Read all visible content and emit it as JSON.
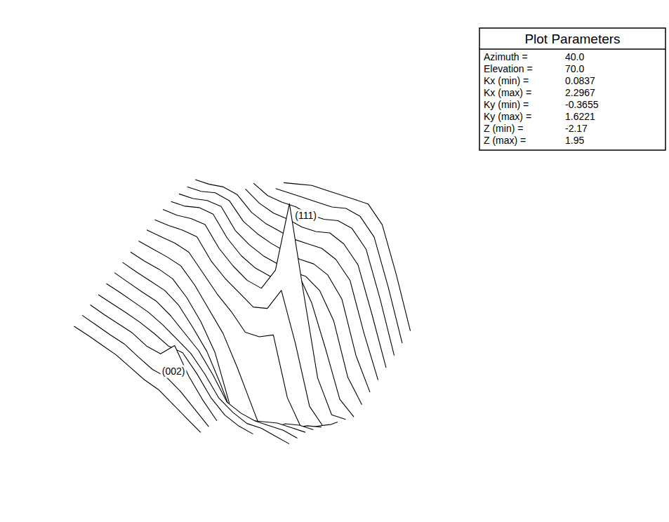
{
  "chart_data": {
    "type": "surface",
    "parameters_title": "Plot Parameters",
    "parameters": [
      {
        "name": "Azimuth =",
        "value": 40,
        "label": "40.0"
      },
      {
        "name": "Elevation =",
        "value": 70,
        "label": "70.0"
      },
      {
        "name": "Kx (min) =",
        "value": 0.0837
      },
      {
        "name": "Kx (max) =",
        "value": 2.2967
      },
      {
        "name": "Ky (min) =",
        "value": -0.3655
      },
      {
        "name": "Ky (max) =",
        "value": 1.6221
      },
      {
        "name": "Z (min) =",
        "value": -2.17
      },
      {
        "name": "Z (max) =",
        "value": 1.95
      }
    ],
    "xlim": [
      0.0837,
      2.2967
    ],
    "ylim": [
      -0.3655,
      1.6221
    ],
    "zlim": [
      -2.17,
      1.95
    ],
    "x": [
      0.084,
      0.254,
      0.424,
      0.594,
      0.765,
      0.935,
      1.105,
      1.276,
      1.446,
      1.616,
      1.786,
      1.957,
      2.127,
      2.297
    ],
    "y": [
      -0.366,
      -0.261,
      -0.156,
      -0.052,
      0.053,
      0.157,
      0.262,
      0.366,
      0.471,
      0.576,
      0.68,
      0.785,
      0.89,
      0.994,
      1.099,
      1.204,
      1.308,
      1.413,
      1.517,
      1.622
    ],
    "z": [
      [
        0.05,
        0.08,
        0.1,
        0.12,
        0.1,
        0.08,
        0.1,
        0.05,
        0.0,
        -0.05,
        null,
        null,
        null,
        null
      ],
      [
        0.08,
        0.1,
        0.12,
        0.15,
        0.12,
        0.1,
        0.15,
        0.1,
        0.0,
        -0.1,
        null,
        null,
        null,
        null
      ],
      [
        0.1,
        0.12,
        0.15,
        0.18,
        0.15,
        0.2,
        0.5,
        0.2,
        0.0,
        -0.15,
        null,
        null,
        null,
        null
      ],
      [
        0.12,
        0.15,
        0.18,
        0.2,
        0.2,
        0.18,
        0.25,
        0.1,
        -0.1,
        -0.2,
        -0.2,
        -0.15,
        null,
        null
      ],
      [
        0.15,
        0.18,
        0.2,
        0.22,
        0.2,
        0.15,
        0.1,
        -0.05,
        -0.25,
        -0.3,
        -0.3,
        -0.2,
        -0.15,
        -0.1
      ],
      [
        0.18,
        0.2,
        0.22,
        0.25,
        0.2,
        0.1,
        0.0,
        -0.2,
        -0.45,
        -0.45,
        -0.4,
        -0.3,
        -0.2,
        -0.15
      ],
      [
        0.2,
        0.22,
        0.25,
        0.28,
        0.22,
        0.05,
        -0.15,
        -0.5,
        -0.9,
        -0.7,
        -0.55,
        -0.4,
        -0.3,
        -0.2
      ],
      [
        0.22,
        0.25,
        0.3,
        0.32,
        0.2,
        0.0,
        -0.3,
        -0.9,
        -2.17,
        -1.1,
        -0.8,
        -0.55,
        -0.4,
        -0.3
      ],
      [
        0.25,
        0.3,
        0.35,
        0.38,
        0.25,
        0.05,
        -0.15,
        -0.5,
        -0.9,
        -1.3,
        -1.0,
        -0.75,
        -0.55,
        -0.4
      ],
      [
        0.28,
        0.35,
        0.42,
        0.45,
        0.3,
        0.15,
        0.05,
        -0.1,
        0.0,
        0.2,
        -0.6,
        -0.9,
        -0.7,
        -0.5
      ],
      [
        0.3,
        0.38,
        0.48,
        0.55,
        0.35,
        0.25,
        0.2,
        0.15,
        0.3,
        0.75,
        0.1,
        -0.7,
        -0.85,
        -0.6
      ],
      [
        0.32,
        0.4,
        0.52,
        0.6,
        0.4,
        0.3,
        0.25,
        0.3,
        0.75,
        1.95,
        0.75,
        -0.4,
        -0.8,
        -0.7
      ],
      [
        0.3,
        0.4,
        0.55,
        0.62,
        0.42,
        0.32,
        0.3,
        0.35,
        0.45,
        0.75,
        0.45,
        -0.1,
        -0.7,
        -0.8
      ],
      [
        0.28,
        0.38,
        0.52,
        0.6,
        0.4,
        0.35,
        0.35,
        0.4,
        0.45,
        0.55,
        0.5,
        0.2,
        -0.5,
        -0.75
      ],
      [
        0.25,
        0.35,
        0.5,
        0.55,
        0.4,
        0.38,
        0.4,
        0.45,
        0.5,
        0.6,
        0.6,
        0.4,
        -0.3,
        -0.7
      ],
      [
        0.22,
        0.32,
        0.45,
        0.5,
        0.4,
        0.4,
        0.45,
        0.5,
        0.6,
        0.7,
        0.7,
        0.55,
        -0.1,
        -0.65
      ],
      [
        null,
        null,
        null,
        0.45,
        0.4,
        0.42,
        0.5,
        0.55,
        0.65,
        0.8,
        0.8,
        0.65,
        0.05,
        -0.6
      ],
      [
        null,
        null,
        null,
        0.4,
        0.38,
        0.45,
        0.55,
        0.6,
        0.7,
        0.85,
        0.9,
        0.75,
        0.15,
        -0.55
      ],
      [
        null,
        null,
        null,
        null,
        0.35,
        0.45,
        0.55,
        0.65,
        0.75,
        0.9,
        0.95,
        0.8,
        0.2,
        -0.5
      ],
      [
        null,
        null,
        null,
        null,
        0.3,
        0.45,
        0.6,
        0.7,
        0.8,
        0.9,
        1.0,
        0.85,
        0.25,
        -0.45
      ]
    ],
    "annotations": [
      {
        "text": "(111)",
        "x": 1.616,
        "y": 0.785,
        "z": 1.95
      },
      {
        "text": "(002)",
        "x": 1.105,
        "y": -0.156,
        "z": 0.5
      }
    ]
  }
}
